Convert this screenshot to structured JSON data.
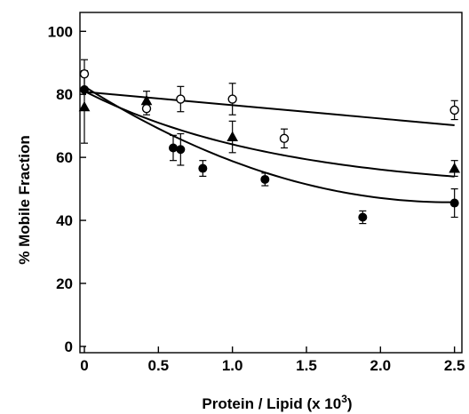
{
  "chart_data": {
    "type": "scatter",
    "title": "",
    "xlabel": "Protein / Lipid (x 10",
    "xlabel_sup": "3",
    "xlabel_end": ")",
    "ylabel": "% Mobile Fraction",
    "xlim": [
      -0.03,
      2.55
    ],
    "ylim": [
      -2,
      106
    ],
    "x_ticks": [
      0,
      0.5,
      1.0,
      1.5,
      2.0,
      2.5
    ],
    "x_tick_labels": [
      "0",
      "0.5",
      "1.0",
      "1.5",
      "2.0",
      "2.5"
    ],
    "y_ticks": [
      0,
      20,
      40,
      60,
      80,
      100
    ],
    "y_tick_labels": [
      "0",
      "20",
      "40",
      "60",
      "80",
      "100"
    ],
    "grid": false,
    "legend": "none",
    "series": [
      {
        "marker": "open-circle",
        "points": [
          {
            "x": 0.0,
            "y": 86.5,
            "err": 4.5
          },
          {
            "x": 0.42,
            "y": 75.5,
            "err": 2.0
          },
          {
            "x": 0.65,
            "y": 78.5,
            "err": 4.0
          },
          {
            "x": 1.0,
            "y": 78.5,
            "err": 5.0
          },
          {
            "x": 1.35,
            "y": 66.0,
            "err": 3.0
          },
          {
            "x": 2.5,
            "y": 75.0,
            "err": 3.0
          }
        ],
        "fit": {
          "x0": 0.0,
          "x1": 2.5,
          "y0": 80.8,
          "y1": 70.2
        }
      },
      {
        "marker": "filled-triangle",
        "points": [
          {
            "x": 0.0,
            "y": 76.0,
            "err": 11.5
          },
          {
            "x": 0.42,
            "y": 78.0,
            "err": 3.0
          },
          {
            "x": 1.0,
            "y": 66.5,
            "err": 5.0
          },
          {
            "x": 2.5,
            "y": 56.5,
            "err": 2.5
          }
        ],
        "fit": {
          "plateau": 49.0,
          "amplitude": 32.0,
          "rate": 0.75
        }
      },
      {
        "marker": "filled-circle",
        "points": [
          {
            "x": 0.0,
            "y": 81.5,
            "err": 0.0
          },
          {
            "x": 0.6,
            "y": 63.0,
            "err": 4.0
          },
          {
            "x": 0.65,
            "y": 62.5,
            "err": 5.0
          },
          {
            "x": 0.8,
            "y": 56.5,
            "err": 2.5
          },
          {
            "x": 1.22,
            "y": 53.0,
            "err": 2.0
          },
          {
            "x": 1.88,
            "y": 41.0,
            "err": 2.0
          },
          {
            "x": 2.5,
            "y": 45.5,
            "err": 4.5
          }
        ],
        "fit": {
          "quad_a": 6.0,
          "quad_b": -29.7,
          "quad_c": 82.5
        }
      }
    ]
  }
}
